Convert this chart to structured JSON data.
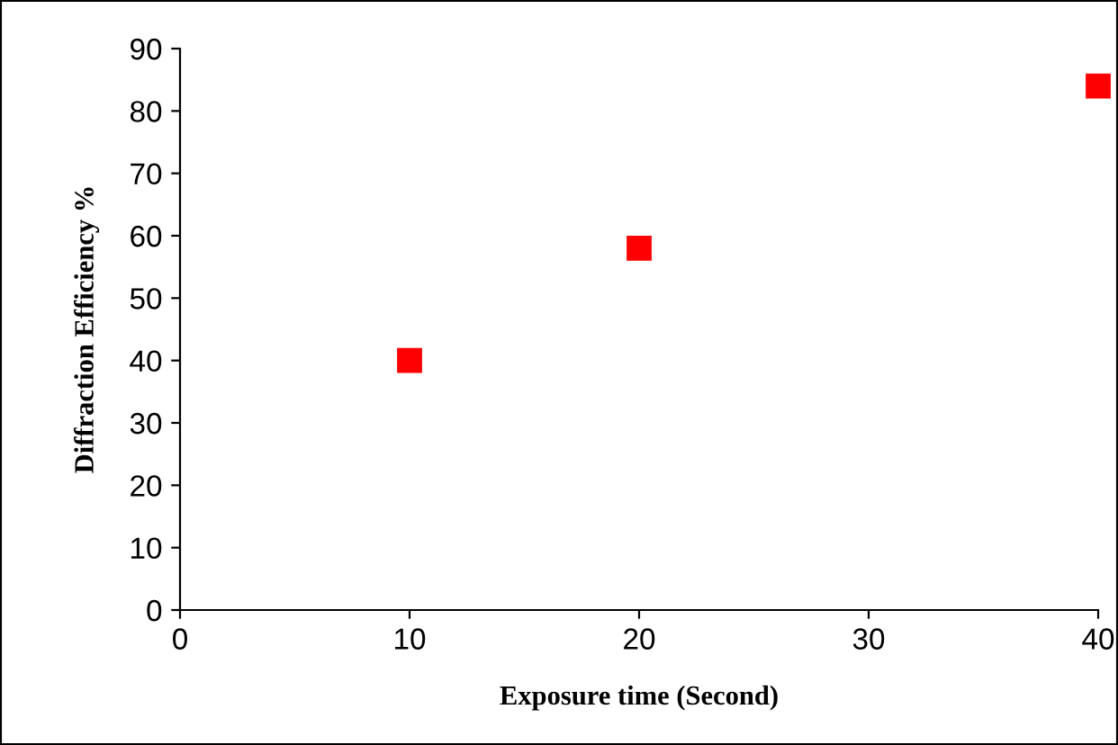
{
  "chart_data": {
    "type": "scatter",
    "xlabel": "Exposure time (Second)",
    "ylabel": "Diffraction Efficiency %",
    "x": [
      10,
      20,
      40
    ],
    "series": [
      {
        "color": "#ff0000",
        "values": [
          40,
          58,
          84
        ]
      }
    ],
    "xlim": [
      0,
      40
    ],
    "xticks": [
      0,
      10,
      20,
      30,
      40
    ],
    "ylim": [
      0,
      90
    ],
    "yticks": [
      0,
      10,
      20,
      30,
      40,
      50,
      60,
      70,
      80,
      90
    ],
    "marker": "square",
    "grid": false,
    "legend": false
  }
}
